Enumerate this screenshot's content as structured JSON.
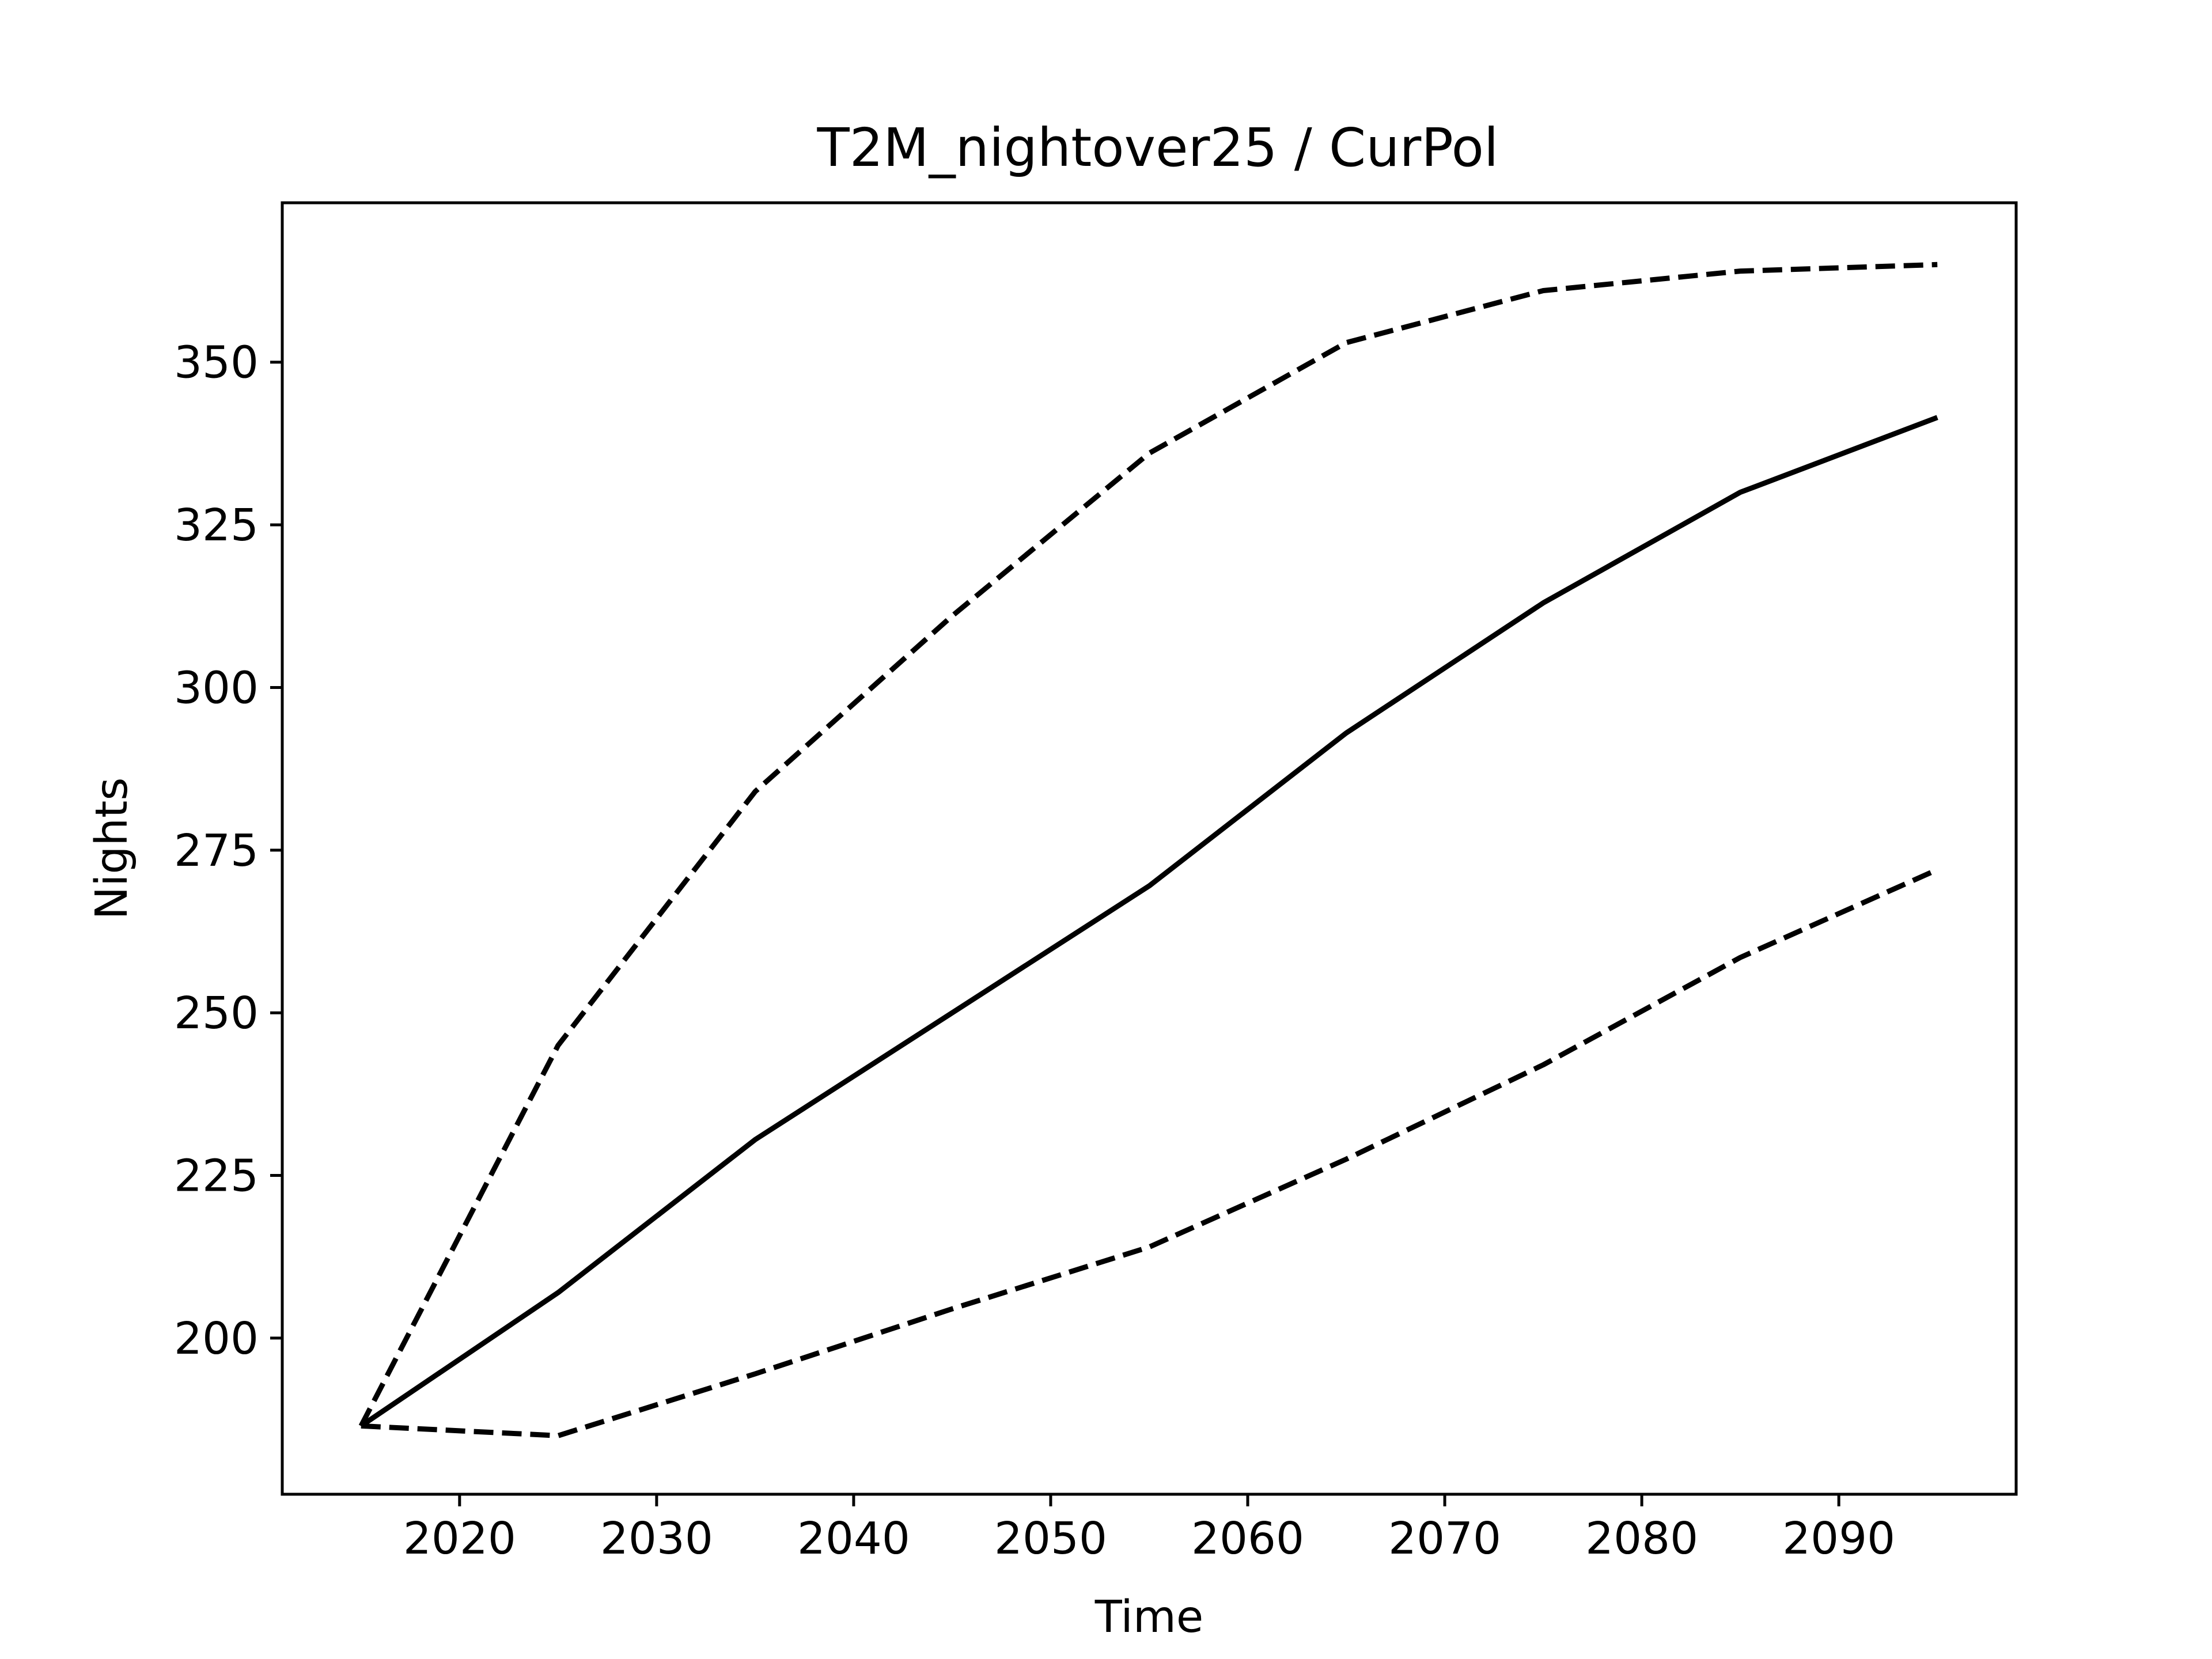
{
  "chart_data": {
    "type": "line",
    "title": "T2M_nightover25 / CurPol",
    "xlabel": "Time",
    "ylabel": "Nights",
    "xlim": [
      2011,
      2099
    ],
    "ylim": [
      176,
      374.5
    ],
    "xticks": [
      2020,
      2030,
      2040,
      2050,
      2060,
      2070,
      2080,
      2090
    ],
    "yticks": [
      200,
      225,
      250,
      275,
      300,
      325,
      350
    ],
    "grid": false,
    "legend": "none",
    "x": [
      2015,
      2025,
      2035,
      2045,
      2055,
      2065,
      2075,
      2085,
      2095
    ],
    "series": [
      {
        "style": "dashed",
        "color": "#000000",
        "values": [
          186.5,
          245,
          284,
          311,
          336,
          353,
          361,
          364,
          365
        ]
      },
      {
        "style": "solid",
        "color": "#000000",
        "values": [
          186.5,
          207,
          230.5,
          250,
          269.5,
          293,
          313,
          330,
          341.5
        ]
      },
      {
        "style": "dashed",
        "color": "#000000",
        "values": [
          186.5,
          185,
          194.5,
          204.5,
          214,
          227.5,
          242,
          258.5,
          272
        ]
      }
    ]
  }
}
